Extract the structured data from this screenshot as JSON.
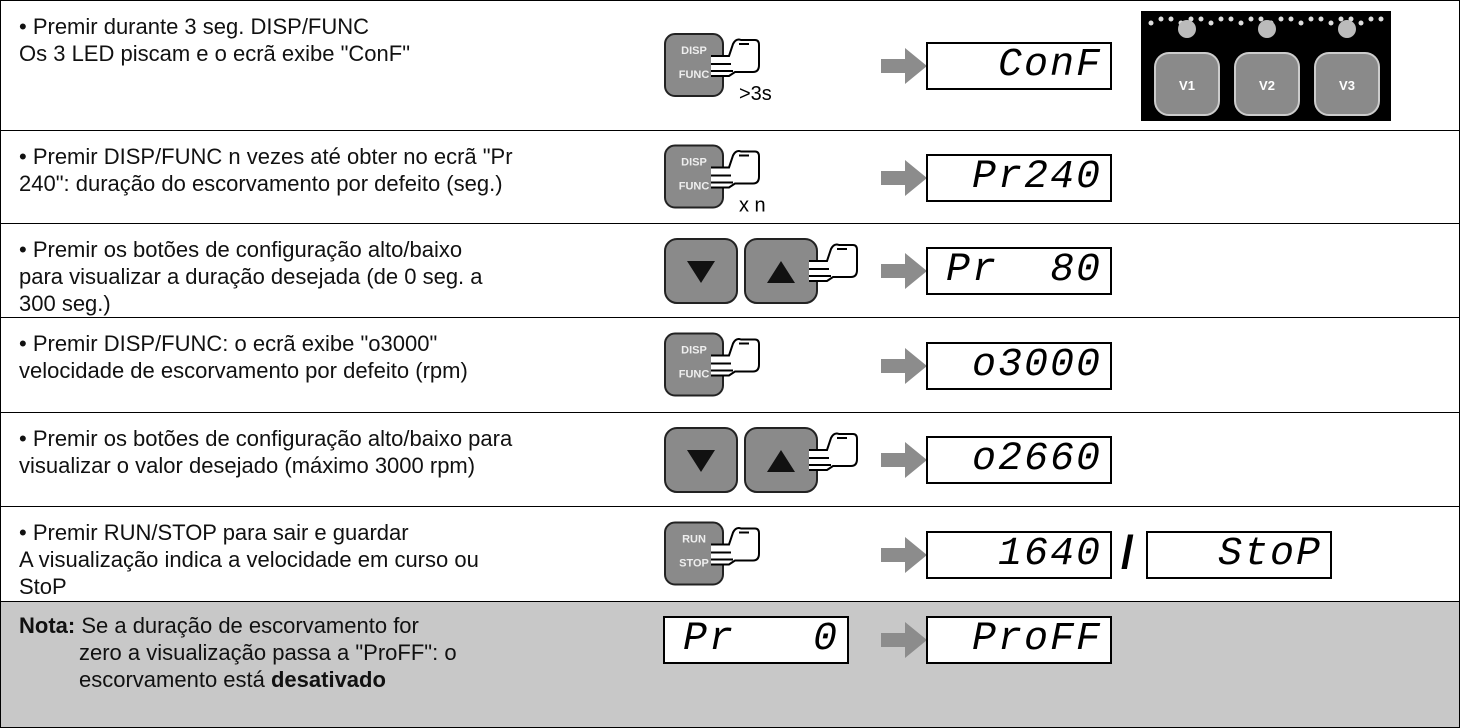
{
  "rows": [
    {
      "text": [
        "• Premir durante 3 seg. DISP/FUNC",
        "Os 3 LED piscam e o ecrã exibe \"ConF\""
      ],
      "buttons": [
        "DISP",
        "FUNC"
      ],
      "press": ">3s",
      "displays": [
        "ConF"
      ],
      "leds": [
        "V1",
        "V2",
        "V3"
      ]
    },
    {
      "text": [
        "• Premir DISP/FUNC n vezes até obter no ecrã \"Pr",
        "240\": duração do escorvamento por defeito (seg.)"
      ],
      "buttons": [
        "DISP",
        "FUNC"
      ],
      "press": "x n",
      "displays": [
        "Pr240"
      ]
    },
    {
      "text": [
        "• Premir os botões de configuração alto/baixo",
        "para visualizar a duração desejada (de 0 seg. a",
        "300 seg.)"
      ],
      "displays": [
        "Pr  80"
      ]
    },
    {
      "text": [
        "• Premir DISP/FUNC: o ecrã exibe \"o3000\"",
        "velocidade de escorvamento por defeito (rpm)"
      ],
      "buttons": [
        "DISP",
        "FUNC"
      ],
      "displays": [
        "o3000"
      ]
    },
    {
      "text": [
        "• Premir os botões de configuração alto/baixo para",
        "visualizar o valor desejado (máximo 3000 rpm)"
      ],
      "displays": [
        "o2660"
      ]
    },
    {
      "text": [
        "• Premir RUN/STOP para sair e guardar",
        "A visualização indica a velocidade em curso ou",
        "StoP"
      ],
      "buttons": [
        "RUN",
        "STOP"
      ],
      "displays": [
        "1640",
        "StoP"
      ],
      "separator": "/"
    }
  ],
  "note": {
    "label": "Nota:",
    "text": [
      "Se a duração de escorvamento for",
      "zero a visualização passa a \"ProFF\": o",
      "escorvamento está "
    ],
    "bold": "desativado",
    "from": "Pr   0",
    "to": "ProFF"
  }
}
